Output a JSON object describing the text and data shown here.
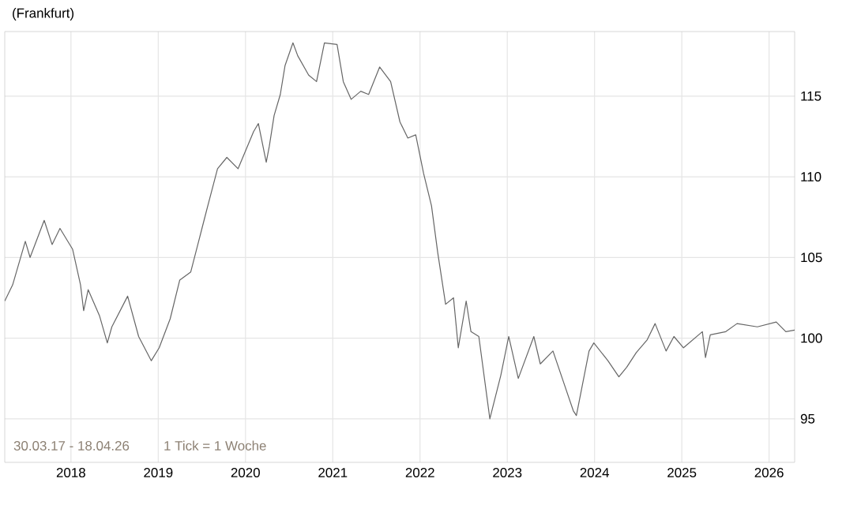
{
  "chart_data": {
    "type": "line",
    "title": "(Frankfurt)",
    "annotations": [
      "30.03.17 - 18.04.26",
      "1 Tick = 1 Woche"
    ],
    "x": [
      "2017-03-30",
      "2017-05-02",
      "2017-06-24",
      "2017-07-14",
      "2017-09-11",
      "2017-10-14",
      "2017-11-16",
      "2018-01-08",
      "2018-02-10",
      "2018-02-23",
      "2018-03-14",
      "2018-04-30",
      "2018-06-02",
      "2018-06-21",
      "2018-08-26",
      "2018-10-11",
      "2018-12-03",
      "2019-01-05",
      "2019-02-20",
      "2019-04-01",
      "2019-05-17",
      "2019-06-19",
      "2019-07-22",
      "2019-09-06",
      "2019-10-15",
      "2019-12-01",
      "2020-02-04",
      "2020-02-24",
      "2020-03-28",
      "2020-04-10",
      "2020-04-30",
      "2020-05-26",
      "2020-06-15",
      "2020-07-18",
      "2020-08-07",
      "2020-09-22",
      "2020-10-25",
      "2020-11-27",
      "2021-01-19",
      "2021-02-14",
      "2021-03-19",
      "2021-04-28",
      "2021-05-31",
      "2021-07-16",
      "2021-08-31",
      "2021-10-09",
      "2021-11-11",
      "2021-12-14",
      "2022-01-16",
      "2022-02-18",
      "2022-03-16",
      "2022-04-18",
      "2022-05-21",
      "2022-06-10",
      "2022-07-13",
      "2022-08-02",
      "2022-09-04",
      "2022-10-20",
      "2022-12-05",
      "2023-01-07",
      "2023-02-16",
      "2023-04-22",
      "2023-05-19",
      "2023-07-11",
      "2023-10-04",
      "2023-10-17",
      "2023-12-09",
      "2023-12-29",
      "2024-02-26",
      "2024-04-12",
      "2024-05-15",
      "2024-06-24",
      "2024-08-09",
      "2024-09-11",
      "2024-10-27",
      "2024-11-29",
      "2025-01-08",
      "2025-03-28",
      "2025-04-10",
      "2025-04-30",
      "2025-07-04",
      "2025-08-20",
      "2025-11-13",
      "2026-01-31",
      "2026-03-12",
      "2026-04-18"
    ],
    "series": [
      {
        "color": "#666666",
        "values": [
          102.3,
          103.3,
          106.0,
          105.0,
          107.3,
          105.8,
          106.8,
          105.5,
          103.3,
          101.7,
          103.0,
          101.4,
          99.7,
          100.7,
          102.6,
          100.1,
          98.6,
          99.4,
          101.2,
          103.6,
          104.1,
          106.0,
          107.9,
          110.5,
          111.2,
          110.5,
          112.8,
          113.3,
          110.9,
          111.9,
          113.8,
          115.1,
          116.9,
          118.3,
          117.5,
          116.3,
          115.9,
          118.3,
          118.2,
          115.9,
          114.8,
          115.3,
          115.1,
          116.8,
          115.9,
          113.4,
          112.4,
          112.6,
          110.2,
          108.2,
          105.3,
          102.1,
          102.5,
          99.4,
          102.3,
          100.4,
          100.1,
          95.0,
          97.7,
          100.1,
          97.5,
          100.1,
          98.4,
          99.2,
          95.5,
          95.2,
          99.2,
          99.7,
          98.6,
          97.6,
          98.2,
          99.1,
          99.9,
          100.9,
          99.2,
          100.1,
          99.4,
          100.4,
          98.8,
          100.2,
          100.4,
          100.9,
          100.7,
          101.0,
          100.4,
          100.5
        ]
      }
    ],
    "xlim": [
      "2017-03-30",
      "2026-04-18"
    ],
    "xticks": [
      {
        "value": "2018-01-01",
        "label": "2018"
      },
      {
        "value": "2019-01-01",
        "label": "2019"
      },
      {
        "value": "2020-01-01",
        "label": "2020"
      },
      {
        "value": "2021-01-01",
        "label": "2021"
      },
      {
        "value": "2022-01-01",
        "label": "2022"
      },
      {
        "value": "2023-01-01",
        "label": "2023"
      },
      {
        "value": "2024-01-01",
        "label": "2024"
      },
      {
        "value": "2025-01-01",
        "label": "2025"
      },
      {
        "value": "2026-01-01",
        "label": "2026"
      }
    ],
    "ylim": [
      92.3,
      119
    ],
    "yticks": [
      95,
      100,
      105,
      110,
      115
    ],
    "grid": true,
    "marker": "none",
    "line_style": "solid"
  }
}
